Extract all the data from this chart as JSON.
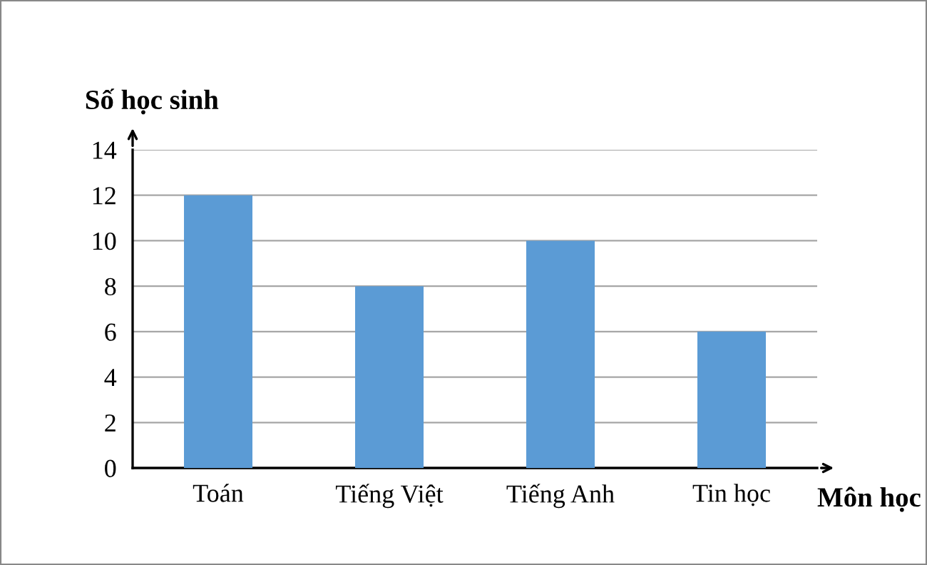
{
  "chart_data": {
    "type": "bar",
    "categories": [
      "Toán",
      "Tiếng Việt",
      "Tiếng Anh",
      "Tin học"
    ],
    "values": [
      12,
      8,
      10,
      6
    ],
    "color": "#5b9bd5",
    "xlabel": "Môn học",
    "ylabel": "Số học sinh",
    "ylim": [
      0,
      14
    ],
    "yticks": [
      0,
      2,
      4,
      6,
      8,
      10,
      12,
      14
    ],
    "grid": "y"
  }
}
